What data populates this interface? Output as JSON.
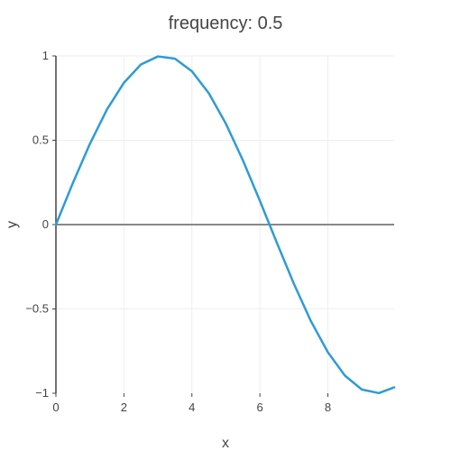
{
  "chart_data": {
    "type": "line",
    "title": "frequency: 0.5",
    "xlabel": "x",
    "ylabel": "y",
    "xlim": [
      0,
      9.95
    ],
    "ylim": [
      -1,
      1
    ],
    "grid": true,
    "legend": "none",
    "colors": {
      "line": "#2f9bd6",
      "zero_line": "#888888",
      "grid": "#eeeeee",
      "axis": "#444444"
    },
    "x_ticks": [
      {
        "value": 0,
        "label": "0"
      },
      {
        "value": 2,
        "label": "2"
      },
      {
        "value": 4,
        "label": "4"
      },
      {
        "value": 6,
        "label": "6"
      },
      {
        "value": 8,
        "label": "8"
      }
    ],
    "y_ticks": [
      {
        "value": 1,
        "label": "1"
      },
      {
        "value": 0.5,
        "label": "0.5"
      },
      {
        "value": 0,
        "label": "0"
      },
      {
        "value": -0.5,
        "label": "−0.5"
      },
      {
        "value": -1,
        "label": "−1"
      }
    ],
    "series": [
      {
        "x": [
          0,
          0.5,
          1,
          1.5,
          2,
          2.5,
          3,
          3.5,
          4,
          4.5,
          5,
          5.5,
          6,
          6.5,
          7,
          7.5,
          8,
          8.5,
          9,
          9.5,
          9.95
        ],
        "y": [
          0,
          0.247,
          0.479,
          0.682,
          0.841,
          0.949,
          0.997,
          0.984,
          0.909,
          0.778,
          0.598,
          0.381,
          0.141,
          -0.108,
          -0.351,
          -0.572,
          -0.757,
          -0.895,
          -0.978,
          -0.999,
          -0.965
        ]
      }
    ]
  }
}
